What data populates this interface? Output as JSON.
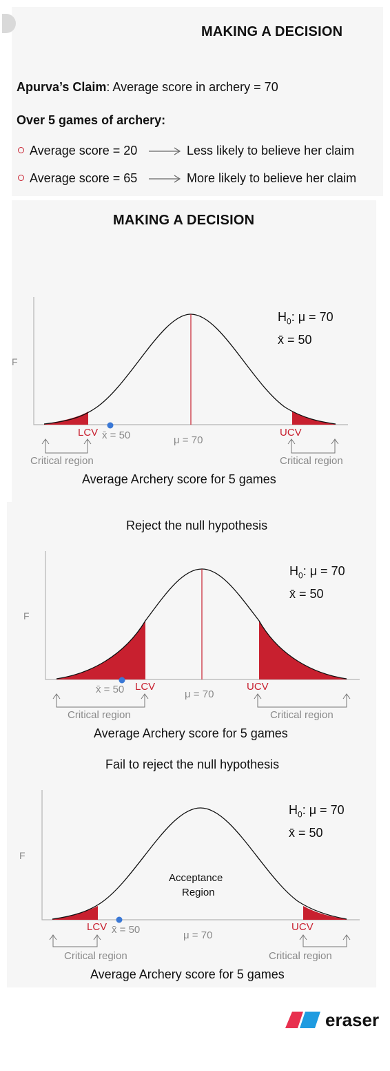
{
  "slide1": {
    "title": "MAKING A DECISION",
    "claim_label": "Apurva’s Claim",
    "claim_text": ": Average score in archery = 70",
    "over_heading": "Over 5 games of archery:",
    "items": [
      {
        "score": "Average score = 20",
        "result": "Less likely to believe her claim"
      },
      {
        "score": "Average score = 65",
        "result": "More likely to believe her claim"
      }
    ]
  },
  "slide2": {
    "title": "MAKING A DECISION"
  },
  "charts": [
    {
      "caption": "",
      "h0_prefix": "H",
      "h0_sub": "0",
      "h0_rest": ": μ = 70",
      "xbar": "x̄ = 50",
      "f_label": "F",
      "lcv": "LCV",
      "ucv": "UCV",
      "mu": "μ = 70",
      "xbar_axis": "x̄ = 50",
      "crit_left": "Critical region",
      "crit_right": "Critical region",
      "xaxis": "Average Archery score for 5 games",
      "acceptance": ""
    },
    {
      "caption": "Reject the null hypothesis",
      "h0_prefix": "H",
      "h0_sub": "0",
      "h0_rest": ": μ = 70",
      "xbar": "x̄ = 50",
      "f_label": "F",
      "lcv": "LCV",
      "ucv": "UCV",
      "mu": "μ = 70",
      "xbar_axis": "x̄ = 50",
      "crit_left": "Critical region",
      "crit_right": "Critical region",
      "xaxis": "Average Archery score for 5 games",
      "acceptance": ""
    },
    {
      "caption": "Fail to reject the null hypothesis",
      "h0_prefix": "H",
      "h0_sub": "0",
      "h0_rest": ": μ = 70",
      "xbar": "x̄ = 50",
      "f_label": "F",
      "lcv": "LCV",
      "ucv": "UCV",
      "mu": "μ = 70",
      "xbar_axis": "x̄ = 50",
      "crit_left": "Critical region",
      "crit_right": "Critical region",
      "xaxis": "Average Archery score for 5 games",
      "acceptance_1": "Acceptance",
      "acceptance_2": "Region"
    }
  ],
  "colors": {
    "critical": "#c8202f",
    "axis": "#b5b5b5",
    "curve": "#111111",
    "sample_dot": "#3a78d6",
    "muted_text": "#8a8a8a"
  },
  "brand": {
    "name": "eraser",
    "logo_colors": [
      "#e8304f",
      "#1f9be0"
    ]
  }
}
